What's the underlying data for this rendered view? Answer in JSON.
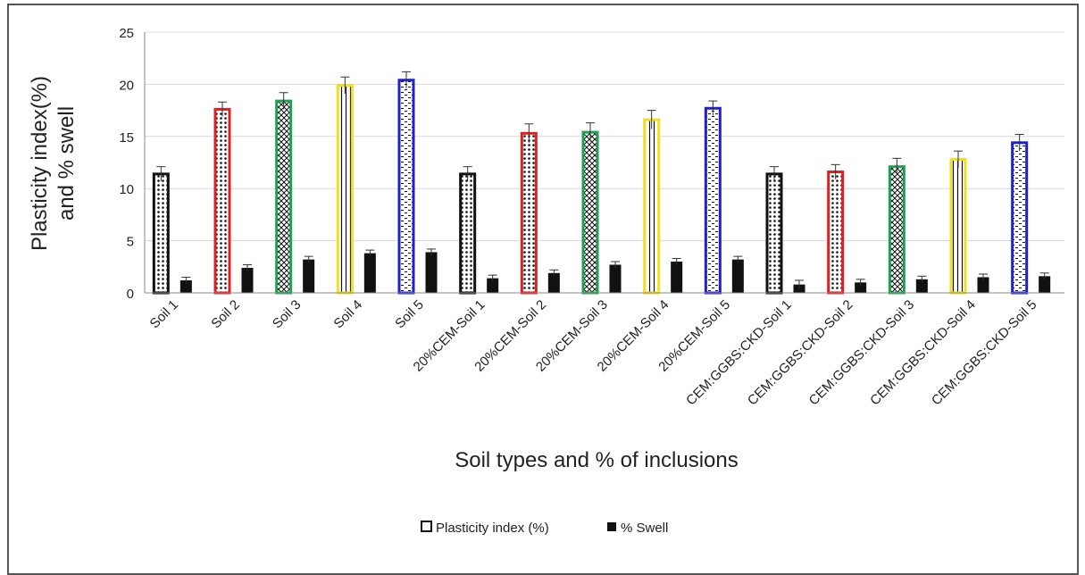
{
  "chart_data": {
    "type": "bar",
    "title": "",
    "xlabel": "Soil types and % of inclusions",
    "ylabel_lines": [
      "Plasticity index(%)",
      "and % swell"
    ],
    "ylim": [
      0,
      25
    ],
    "yticks": [
      0,
      5,
      10,
      15,
      20,
      25
    ],
    "grid": true,
    "legend_position": "bottom",
    "categories": [
      "Soil 1",
      "Soil 2",
      "Soil 3",
      "Soil 4",
      "Soil 5",
      "20%CEM-Soil 1",
      "20%CEM-Soil 2",
      "20%CEM-Soil 3",
      "20%CEM-Soil 4",
      "20%CEM-Soil 5",
      "CEM:GGBS:CKD-Soil 1",
      "CEM:GGBS:CKD-Soil 2",
      "CEM:GGBS:CKD-Soil 3",
      "CEM:GGBS:CKD-Soil 4",
      "CEM:GGBS:CKD-Soil 5"
    ],
    "series": [
      {
        "name": "Plasticity index (%)",
        "values": [
          11.4,
          17.6,
          18.4,
          19.9,
          20.4,
          11.4,
          15.3,
          15.4,
          16.6,
          17.7,
          11.4,
          11.6,
          12.1,
          12.8,
          14.4
        ],
        "errors": [
          0.7,
          0.7,
          0.8,
          0.8,
          0.8,
          0.7,
          0.9,
          0.9,
          0.9,
          0.7,
          0.7,
          0.7,
          0.8,
          0.8,
          0.8
        ]
      },
      {
        "name": "% Swell",
        "values": [
          1.2,
          2.4,
          3.2,
          3.8,
          3.9,
          1.4,
          1.9,
          2.7,
          3.0,
          3.2,
          0.8,
          1.0,
          1.3,
          1.5,
          1.6
        ],
        "errors": [
          0.3,
          0.3,
          0.3,
          0.3,
          0.3,
          0.3,
          0.3,
          0.3,
          0.3,
          0.3,
          0.4,
          0.3,
          0.3,
          0.3,
          0.3
        ]
      }
    ],
    "bar_outline_colors": [
      "#111111",
      "#e02020",
      "#20a050",
      "#f0e020",
      "#2020d0",
      "#111111",
      "#e02020",
      "#20a050",
      "#f0e020",
      "#2020d0",
      "#111111",
      "#e02020",
      "#20a050",
      "#f0e020",
      "#2020d0"
    ],
    "bar_patterns": [
      "dots",
      "dots",
      "cross",
      "vlines",
      "dashes",
      "dots",
      "dots",
      "cross",
      "vlines",
      "dashes",
      "dots",
      "dots",
      "cross",
      "vlines",
      "dashes"
    ],
    "swell_color": "#111111"
  }
}
